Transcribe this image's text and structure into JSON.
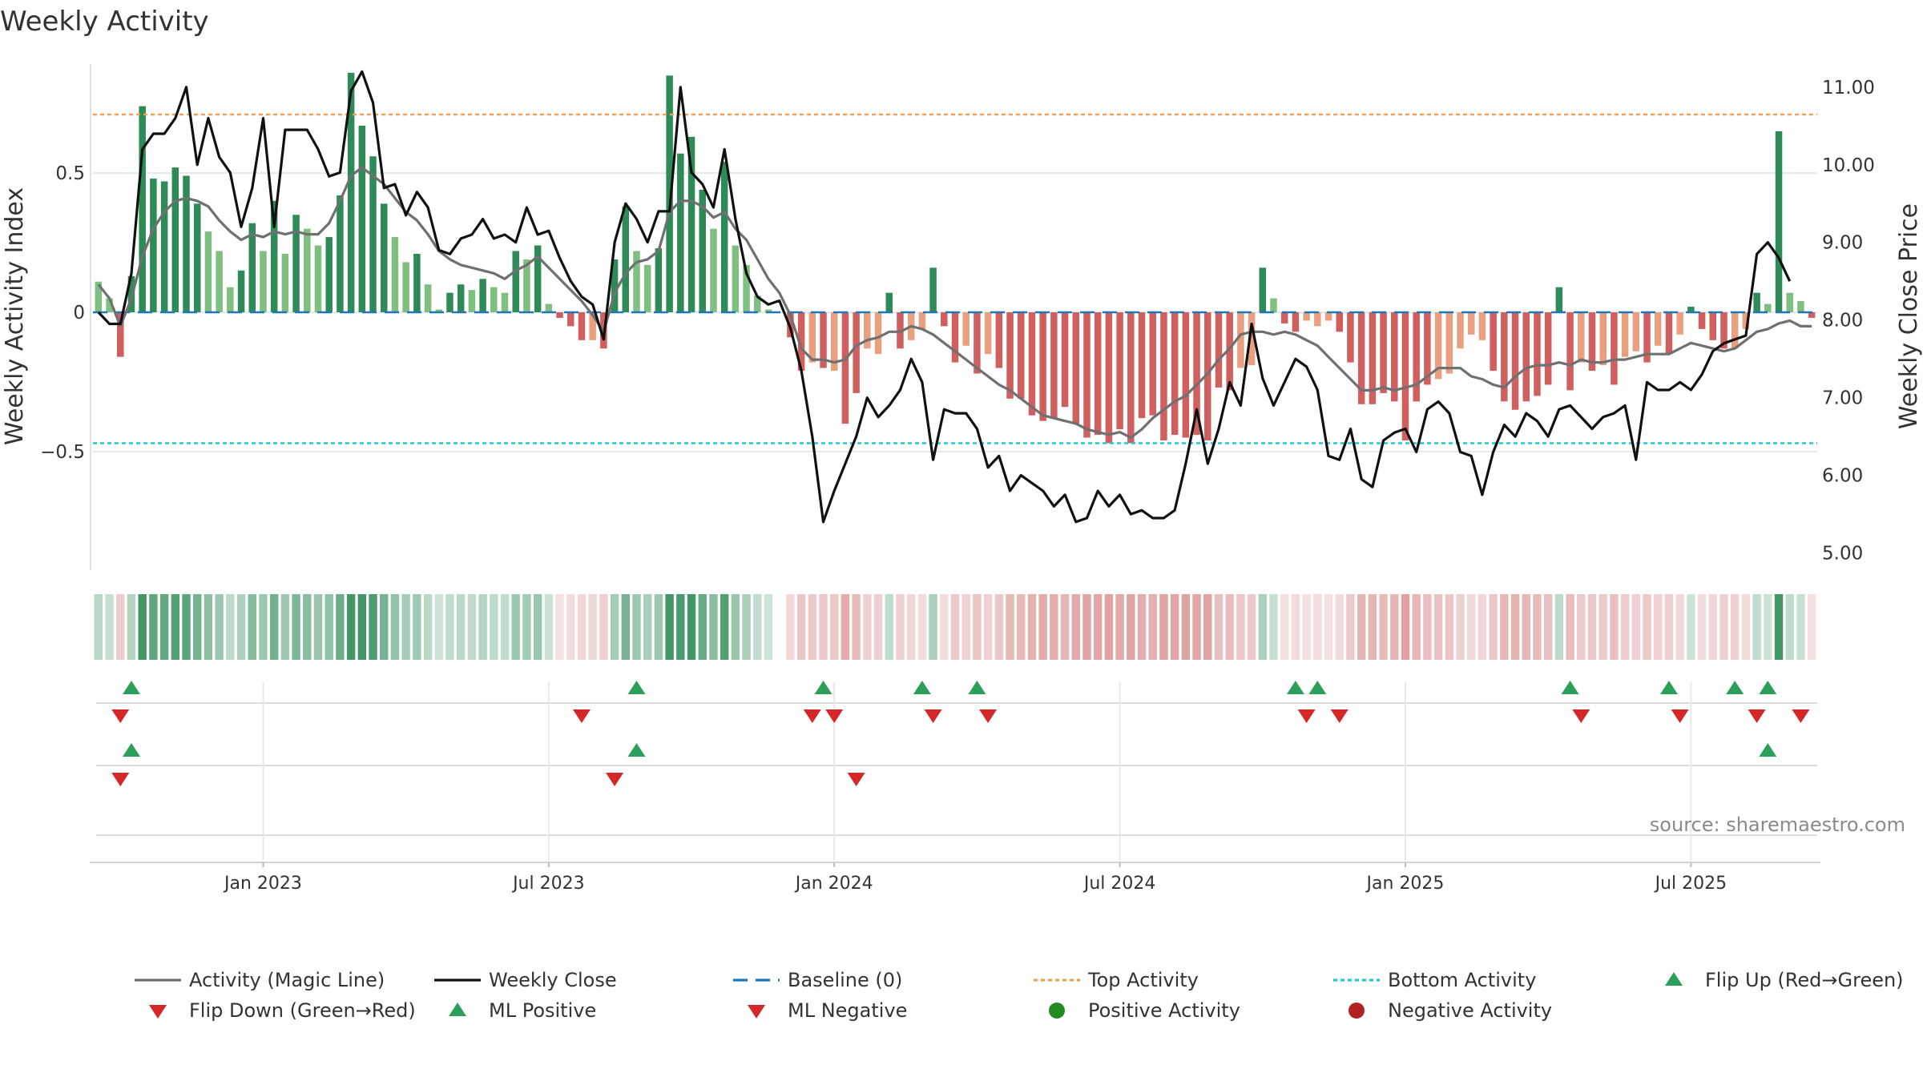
{
  "chart_data": {
    "type": "bar",
    "title": "Weekly Activity",
    "ylabel_left": "Weekly Activity Index",
    "ylabel_right": "Weekly Close Price",
    "yticks_left": [
      "−0.5",
      "0",
      "0.5"
    ],
    "yticks_left_values": [
      -0.5,
      0,
      0.5
    ],
    "yticks_right": [
      "5.00",
      "6.00",
      "7.00",
      "8.00",
      "9.00",
      "10.00",
      "11.00"
    ],
    "yticks_right_values": [
      5,
      6,
      7,
      8,
      9,
      10,
      11
    ],
    "ylim_left": [
      -0.92,
      0.92
    ],
    "ylim_right": [
      4.8,
      11.4
    ],
    "xticks": [
      "Jan 2023",
      "Jul 2023",
      "Jan 2024",
      "Jul 2024",
      "Jan 2025",
      "Jul 2025"
    ],
    "xtick_weeks": [
      15,
      41,
      67,
      93,
      119,
      145
    ],
    "n_weeks": 157,
    "top_activity": 0.71,
    "bottom_activity": -0.47,
    "baseline": 0,
    "activity": [
      0.11,
      0.05,
      -0.16,
      0.13,
      0.74,
      0.48,
      0.47,
      0.52,
      0.49,
      0.39,
      0.29,
      0.22,
      0.09,
      0.15,
      0.32,
      0.22,
      0.4,
      0.21,
      0.35,
      0.3,
      0.24,
      0.27,
      0.42,
      0.86,
      0.67,
      0.56,
      0.39,
      0.27,
      0.18,
      0.21,
      0.1,
      0.01,
      0.07,
      0.1,
      0.08,
      0.12,
      0.09,
      0.07,
      0.22,
      0.19,
      0.24,
      0.03,
      -0.02,
      -0.05,
      -0.1,
      -0.1,
      -0.13,
      0.19,
      0.38,
      0.22,
      0.17,
      0.23,
      0.85,
      0.57,
      0.63,
      0.44,
      0.3,
      0.54,
      0.24,
      0.17,
      0.06,
      0.01,
      0,
      -0.09,
      -0.21,
      -0.18,
      -0.2,
      -0.21,
      -0.4,
      -0.29,
      -0.13,
      -0.15,
      0.07,
      -0.13,
      -0.1,
      -0.06,
      0.16,
      -0.05,
      -0.18,
      -0.12,
      -0.22,
      -0.15,
      -0.2,
      -0.31,
      -0.31,
      -0.37,
      -0.39,
      -0.38,
      -0.34,
      -0.4,
      -0.45,
      -0.44,
      -0.47,
      -0.42,
      -0.47,
      -0.38,
      -0.37,
      -0.46,
      -0.44,
      -0.45,
      -0.44,
      -0.46,
      -0.27,
      -0.28,
      -0.2,
      -0.19,
      0.16,
      0.05,
      -0.04,
      -0.07,
      -0.03,
      -0.05,
      -0.03,
      -0.07,
      -0.18,
      -0.33,
      -0.33,
      -0.29,
      -0.32,
      -0.46,
      -0.32,
      -0.26,
      -0.24,
      -0.22,
      -0.13,
      -0.08,
      -0.1,
      -0.21,
      -0.32,
      -0.35,
      -0.32,
      -0.3,
      -0.26,
      0.09,
      -0.28,
      -0.18,
      -0.21,
      -0.19,
      -0.26,
      -0.16,
      -0.14,
      -0.18,
      -0.12,
      -0.15,
      -0.08,
      0.02,
      -0.06,
      -0.1,
      -0.13,
      -0.13,
      -0.06,
      0.07,
      0.03,
      0.65,
      0.07,
      0.04,
      -0.02
    ],
    "magic_line": [
      0.1,
      0.05,
      -0.05,
      0.05,
      0.2,
      0.3,
      0.36,
      0.4,
      0.41,
      0.4,
      0.38,
      0.33,
      0.29,
      0.26,
      0.28,
      0.27,
      0.29,
      0.28,
      0.29,
      0.28,
      0.28,
      0.32,
      0.4,
      0.49,
      0.52,
      0.49,
      0.46,
      0.41,
      0.36,
      0.33,
      0.28,
      0.22,
      0.19,
      0.17,
      0.16,
      0.15,
      0.14,
      0.12,
      0.15,
      0.17,
      0.2,
      0.16,
      0.12,
      0.08,
      0.04,
      -0.01,
      -0.07,
      0.07,
      0.14,
      0.18,
      0.19,
      0.22,
      0.36,
      0.4,
      0.4,
      0.38,
      0.34,
      0.36,
      0.3,
      0.26,
      0.19,
      0.12,
      0.07,
      -0.01,
      -0.13,
      -0.17,
      -0.17,
      -0.18,
      -0.17,
      -0.12,
      -0.1,
      -0.09,
      -0.07,
      -0.07,
      -0.05,
      -0.06,
      -0.08,
      -0.11,
      -0.14,
      -0.17,
      -0.2,
      -0.23,
      -0.26,
      -0.28,
      -0.31,
      -0.34,
      -0.37,
      -0.38,
      -0.39,
      -0.4,
      -0.42,
      -0.43,
      -0.44,
      -0.43,
      -0.45,
      -0.42,
      -0.38,
      -0.35,
      -0.32,
      -0.3,
      -0.26,
      -0.22,
      -0.17,
      -0.13,
      -0.08,
      -0.07,
      -0.07,
      -0.08,
      -0.07,
      -0.08,
      -0.1,
      -0.12,
      -0.16,
      -0.2,
      -0.24,
      -0.28,
      -0.28,
      -0.27,
      -0.28,
      -0.27,
      -0.26,
      -0.23,
      -0.2,
      -0.2,
      -0.2,
      -0.23,
      -0.24,
      -0.26,
      -0.27,
      -0.23,
      -0.2,
      -0.19,
      -0.19,
      -0.18,
      -0.19,
      -0.17,
      -0.18,
      -0.18,
      -0.17,
      -0.17,
      -0.16,
      -0.15,
      -0.15,
      -0.15,
      -0.13,
      -0.11,
      -0.12,
      -0.13,
      -0.14,
      -0.13,
      -0.1,
      -0.07,
      -0.06,
      -0.04,
      -0.03,
      -0.05,
      -0.05
    ],
    "weekly_close": [
      8.1,
      7.95,
      7.95,
      8.6,
      10.2,
      10.4,
      10.4,
      10.6,
      11.0,
      10.0,
      10.6,
      10.1,
      9.9,
      9.2,
      9.7,
      10.6,
      9.2,
      10.45,
      10.45,
      10.45,
      10.2,
      9.85,
      9.9,
      10.95,
      11.2,
      10.8,
      9.7,
      9.75,
      9.35,
      9.65,
      9.45,
      8.9,
      8.85,
      9.05,
      9.1,
      9.3,
      9.05,
      9.1,
      9.0,
      9.45,
      9.1,
      9.15,
      8.8,
      8.5,
      8.3,
      8.2,
      7.75,
      9.0,
      9.5,
      9.3,
      9.0,
      9.4,
      9.4,
      11.0,
      9.9,
      9.75,
      9.45,
      10.2,
      9.3,
      8.6,
      8.3,
      8.2,
      8.25,
      7.9,
      7.35,
      6.5,
      5.4,
      5.8,
      6.15,
      6.5,
      7.0,
      6.75,
      6.9,
      7.1,
      7.5,
      7.2,
      6.2,
      6.85,
      6.8,
      6.8,
      6.6,
      6.1,
      6.25,
      5.8,
      6.0,
      5.9,
      5.8,
      5.6,
      5.75,
      5.4,
      5.45,
      5.8,
      5.6,
      5.75,
      5.5,
      5.55,
      5.45,
      5.45,
      5.55,
      6.15,
      6.85,
      6.15,
      6.6,
      7.2,
      6.9,
      7.95,
      7.25,
      6.9,
      7.2,
      7.5,
      7.4,
      7.1,
      6.25,
      6.2,
      6.6,
      5.95,
      5.85,
      6.45,
      6.55,
      6.6,
      6.3,
      6.85,
      6.95,
      6.8,
      6.3,
      6.25,
      5.75,
      6.3,
      6.65,
      6.5,
      6.8,
      6.7,
      6.5,
      6.85,
      6.9,
      6.75,
      6.6,
      6.75,
      6.8,
      6.9,
      6.2,
      7.2,
      7.1,
      7.1,
      7.2,
      7.1,
      7.3,
      7.6,
      7.7,
      7.75,
      7.8,
      8.85,
      9.0,
      8.8,
      8.5
    ]
  },
  "legend": [
    {
      "label": "Activity (Magic Line)",
      "kind": "line",
      "color": "#707070",
      "dash": "none"
    },
    {
      "label": "Weekly Close",
      "kind": "line",
      "color": "#111111",
      "dash": "none"
    },
    {
      "label": "Baseline (0)",
      "kind": "line",
      "color": "#1f77b4",
      "dash": "18,10"
    },
    {
      "label": "Top Activity",
      "kind": "line",
      "color": "#f0a050",
      "dash": "5,4"
    },
    {
      "label": "Bottom Activity",
      "kind": "line",
      "color": "#22c7d8",
      "dash": "5,4"
    },
    {
      "label": "Flip Up (Red→Green)",
      "kind": "up",
      "color": "#2ca05a"
    },
    {
      "label": "Flip Down (Green→Red)",
      "kind": "down",
      "color": "#d62728"
    },
    {
      "label": "ML Positive",
      "kind": "up",
      "color": "#2ca05a"
    },
    {
      "label": "ML Negative",
      "kind": "down",
      "color": "#d62728"
    },
    {
      "label": "Positive Activity",
      "kind": "dot",
      "color": "#228b22"
    },
    {
      "label": "Negative Activity",
      "kind": "dot",
      "color": "#b22222"
    }
  ],
  "flip_up_weeks": [
    3,
    49,
    66,
    75,
    80,
    109,
    111,
    134,
    143,
    149,
    152
  ],
  "flip_down_weeks": [
    2,
    44,
    65,
    67,
    76,
    81,
    110,
    113,
    135,
    144,
    151,
    155
  ],
  "ml_positive_weeks": [
    3,
    49,
    152
  ],
  "ml_negative_weeks": [
    2,
    47,
    69
  ],
  "source": "source: sharemaestro.com",
  "colors": {
    "pos_strong": "#2e8b57",
    "pos_light": "#7fbf7f",
    "neg_strong": "#d06060",
    "neg_light": "#e8a080",
    "grid": "#e5e8ec",
    "top_line": "#f0a050",
    "bottom_line": "#22c7d8",
    "baseline": "#1f77b4",
    "close_line": "#111111",
    "magic_line": "#707070"
  }
}
